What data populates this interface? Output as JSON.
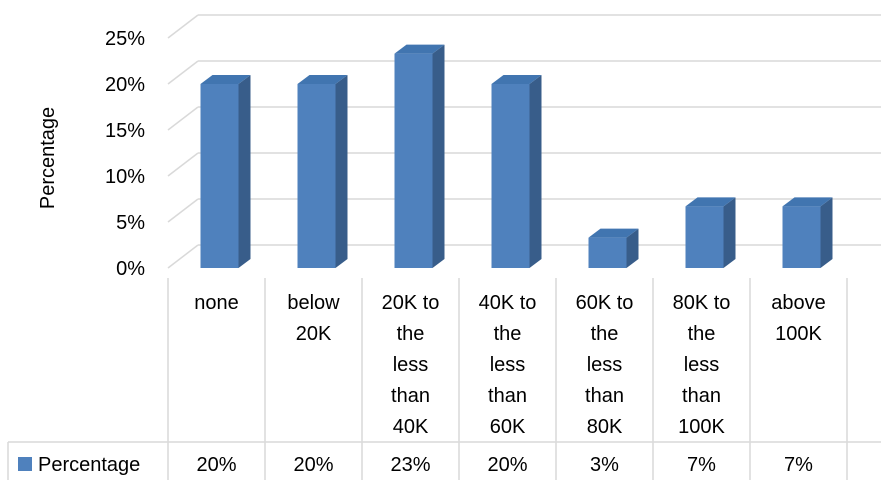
{
  "chart_data": {
    "type": "bar",
    "ylabel": "Percentage",
    "ylim": [
      0,
      25
    ],
    "yticks": [
      "0%",
      "5%",
      "10%",
      "15%",
      "20%",
      "25%"
    ],
    "grid": true,
    "bar_style": "3d-column",
    "categories": [
      [
        "none"
      ],
      [
        "below",
        "20K"
      ],
      [
        "20K to",
        "the",
        "less",
        "than",
        "40K"
      ],
      [
        "40K to",
        "the",
        "less",
        "than",
        "60K"
      ],
      [
        "60K to",
        "the",
        "less",
        "than",
        "80K"
      ],
      [
        "80K to",
        "the",
        "less",
        "than",
        "100K"
      ],
      [
        "above",
        "100K"
      ]
    ],
    "series": [
      {
        "name": "Percentage",
        "values": [
          20,
          20,
          23.3,
          20,
          3.3,
          6.7,
          6.7
        ],
        "labels": [
          "20%",
          "20%",
          "23%",
          "20%",
          "3%",
          "7%",
          "7%"
        ],
        "color": "#4f81bd"
      }
    ],
    "legend_placement": "data-table-left"
  }
}
